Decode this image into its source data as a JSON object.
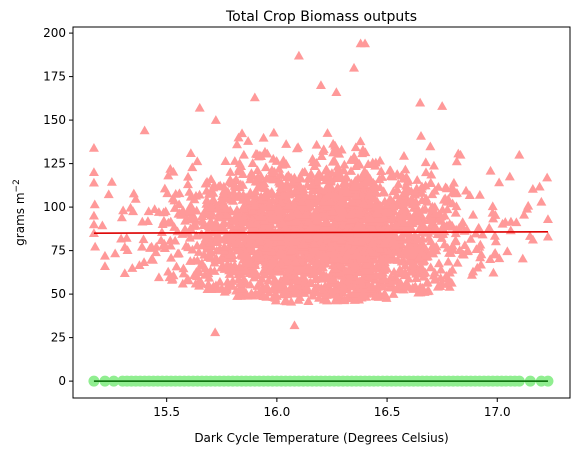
{
  "chart_data": {
    "type": "scatter",
    "title": "Total Crop Biomass outputs",
    "xlabel": "Dark Cycle Temperature (Degrees Celsius)",
    "ylabel": "grams m",
    "ylabel_superscript": "−2",
    "xlim": [
      15.075,
      17.33
    ],
    "ylim": [
      -9.7,
      203.5
    ],
    "xticks": [
      15.5,
      16.0,
      16.5,
      17.0
    ],
    "xtick_labels": [
      "15.5",
      "16.0",
      "16.5",
      "17.0"
    ],
    "yticks": [
      0,
      25,
      50,
      75,
      100,
      125,
      150,
      175,
      200
    ],
    "ytick_labels": [
      "0",
      "25",
      "50",
      "75",
      "100",
      "125",
      "150",
      "175",
      "200"
    ],
    "grid": false,
    "series": [
      {
        "marker": "triangle",
        "color": "#ff9999",
        "distribution": {
          "x_mean": 16.2,
          "x_sd": 0.33,
          "x_min": 15.17,
          "x_max": 17.23,
          "y_mean": 85,
          "y_sd": 20,
          "y_min": 28,
          "y_max": 194,
          "count": 2800
        },
        "x": [
          16.38,
          16.4,
          16.35,
          16.1,
          16.2,
          16.27,
          15.9,
          15.65,
          16.65,
          16.75,
          17.1,
          15.17,
          15.17,
          15.17,
          15.17,
          15.17,
          15.17,
          15.22,
          15.22,
          17.23,
          17.23,
          17.2,
          15.31,
          15.31,
          15.4,
          16.08,
          15.72
        ],
        "y": [
          194,
          194,
          180,
          187,
          170,
          166,
          163,
          157,
          160,
          158,
          130,
          134,
          120,
          114,
          95,
          90,
          85,
          72,
          66,
          93,
          83,
          103,
          77,
          62,
          144,
          32,
          28
        ]
      },
      {
        "marker": "circle",
        "color": "#90ee90",
        "distribution": {
          "x_min": 15.17,
          "x_max": 17.23,
          "x_step": 0.02,
          "y": 0
        },
        "x": [
          15.17,
          15.22,
          15.26,
          15.3,
          17.1,
          17.15,
          17.2,
          17.23
        ],
        "y": [
          0,
          0,
          0,
          0,
          0,
          0,
          0,
          0
        ]
      }
    ],
    "trend_lines": [
      {
        "color": "#dd0000",
        "x": [
          15.17,
          17.23
        ],
        "y": [
          85.0,
          85.8
        ]
      },
      {
        "color": "#006400",
        "x": [
          15.17,
          17.23
        ],
        "y": [
          0,
          0
        ]
      }
    ]
  }
}
